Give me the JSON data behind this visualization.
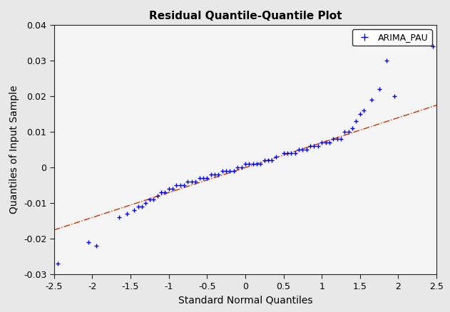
{
  "title": "Residual Quantile-Quantile Plot",
  "xlabel": "Standard Normal Quantiles",
  "ylabel": "Quantiles of Input Sample",
  "xlim": [
    -2.5,
    2.5
  ],
  "ylim": [
    -0.03,
    0.04
  ],
  "legend_label": "ARIMA_PAU",
  "marker_color": "#0000FF",
  "line_color": "#CC3300",
  "background_color": "#E8E8E8",
  "plot_bg_color": "#F5F5F5",
  "title_fontsize": 11,
  "label_fontsize": 10,
  "tick_fontsize": 9,
  "x_quantiles": [
    -2.45,
    -2.05,
    -1.95,
    -1.65,
    -1.55,
    -1.45,
    -1.4,
    -1.35,
    -1.3,
    -1.25,
    -1.2,
    -1.15,
    -1.1,
    -1.05,
    -1.0,
    -0.95,
    -0.9,
    -0.85,
    -0.8,
    -0.75,
    -0.7,
    -0.65,
    -0.6,
    -0.55,
    -0.5,
    -0.45,
    -0.4,
    -0.35,
    -0.3,
    -0.25,
    -0.2,
    -0.15,
    -0.1,
    -0.05,
    0.0,
    0.05,
    0.1,
    0.15,
    0.2,
    0.25,
    0.3,
    0.35,
    0.4,
    0.5,
    0.55,
    0.6,
    0.65,
    0.7,
    0.75,
    0.8,
    0.85,
    0.9,
    0.95,
    1.0,
    1.05,
    1.1,
    1.15,
    1.2,
    1.25,
    1.3,
    1.35,
    1.4,
    1.45,
    1.5,
    1.55,
    1.65,
    1.75,
    1.85,
    1.95,
    2.45
  ],
  "y_quantiles": [
    -0.027,
    -0.021,
    -0.022,
    -0.014,
    -0.013,
    -0.012,
    -0.011,
    -0.011,
    -0.01,
    -0.009,
    -0.009,
    -0.008,
    -0.007,
    -0.007,
    -0.006,
    -0.006,
    -0.005,
    -0.005,
    -0.005,
    -0.004,
    -0.004,
    -0.004,
    -0.003,
    -0.003,
    -0.003,
    -0.002,
    -0.002,
    -0.002,
    -0.001,
    -0.001,
    -0.001,
    -0.001,
    0.0,
    0.0,
    0.001,
    0.001,
    0.001,
    0.001,
    0.001,
    0.002,
    0.002,
    0.002,
    0.003,
    0.004,
    0.004,
    0.004,
    0.004,
    0.005,
    0.005,
    0.005,
    0.006,
    0.006,
    0.006,
    0.007,
    0.007,
    0.007,
    0.008,
    0.008,
    0.008,
    0.01,
    0.01,
    0.011,
    0.013,
    0.015,
    0.016,
    0.019,
    0.022,
    0.03,
    0.02,
    0.034
  ],
  "ref_line_x": [
    -2.5,
    2.5
  ],
  "ref_line_y": [
    -0.0175,
    0.0175
  ],
  "xticks": [
    -2.5,
    -2,
    -1.5,
    -1,
    -0.5,
    0,
    0.5,
    1,
    1.5,
    2,
    2.5
  ],
  "yticks": [
    -0.03,
    -0.02,
    -0.01,
    0,
    0.01,
    0.02,
    0.03,
    0.04
  ]
}
